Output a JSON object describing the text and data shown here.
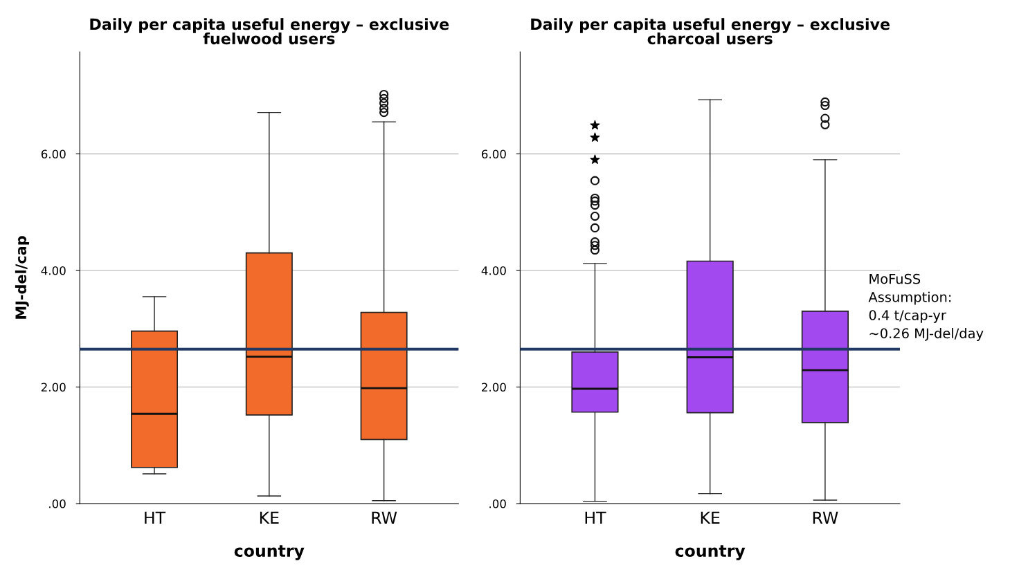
{
  "chart_data": [
    {
      "type": "box",
      "title": "Daily per capita useful energy – exclusive\nfuelwood users",
      "xlabel": "country",
      "ylabel": "MJ-del/cap",
      "categories": [
        "HT",
        "KE",
        "RW"
      ],
      "series": [
        {
          "type": "box",
          "color": "#f26b2a",
          "boxes": [
            {
              "low": 0.51,
              "q1": 0.62,
              "median": 1.54,
              "q3": 2.96,
              "high": 3.55
            },
            {
              "low": 0.13,
              "q1": 1.52,
              "median": 2.52,
              "q3": 4.3,
              "high": 6.71
            },
            {
              "low": 0.05,
              "q1": 1.1,
              "median": 1.98,
              "q3": 3.28,
              "high": 6.55,
              "outliers": [
                6.71,
                6.78,
                6.87,
                6.95,
                7.02
              ]
            }
          ]
        }
      ],
      "ylim": [
        0,
        7.75
      ],
      "yticks": [
        {
          "value": 0,
          "label": ".00"
        },
        {
          "value": 2,
          "label": "2.00"
        },
        {
          "value": 4,
          "label": "4.00"
        },
        {
          "value": 6,
          "label": "6.00"
        }
      ],
      "grid": "y",
      "ref_lines": [
        {
          "axis": "y",
          "value": 2.65,
          "color": "#1f3864"
        }
      ]
    },
    {
      "type": "box",
      "title": "Daily per capita useful energy – exclusive\ncharcoal users",
      "xlabel": "country",
      "categories": [
        "HT",
        "KE",
        "RW"
      ],
      "series": [
        {
          "type": "box",
          "color": "#a349f0",
          "boxes": [
            {
              "low": 0.04,
              "q1": 1.57,
              "median": 1.97,
              "q3": 2.6,
              "high": 4.12,
              "outliers": [
                4.35,
                4.43,
                4.49,
                4.73,
                4.93,
                5.12,
                5.19,
                5.24,
                5.54
              ]
            },
            {
              "low": 0.17,
              "q1": 1.56,
              "median": 2.51,
              "q3": 4.16,
              "high": 6.93
            },
            {
              "low": 0.06,
              "q1": 1.39,
              "median": 2.29,
              "q3": 3.3,
              "high": 5.9,
              "outliers": [
                6.5,
                6.61,
                6.83,
                6.89
              ]
            }
          ]
        },
        {
          "type": "scatter",
          "marker": "star",
          "color": "#000000",
          "x": [
            "HT",
            "HT",
            "HT"
          ],
          "values": [
            5.9,
            6.28,
            6.49
          ]
        }
      ],
      "ylim": [
        0,
        7.75
      ],
      "yticks": [
        {
          "value": 0,
          "label": ".00"
        },
        {
          "value": 2,
          "label": "2.00"
        },
        {
          "value": 4,
          "label": "4.00"
        },
        {
          "value": 6,
          "label": "6.00"
        }
      ],
      "grid": "y",
      "ref_lines": [
        {
          "axis": "y",
          "value": 2.65,
          "color": "#1f3864"
        }
      ],
      "annotations": [
        "MoFuSS\nAssumption:\n0.4 t/cap-yr\n~0.26 MJ-del/day"
      ]
    }
  ]
}
